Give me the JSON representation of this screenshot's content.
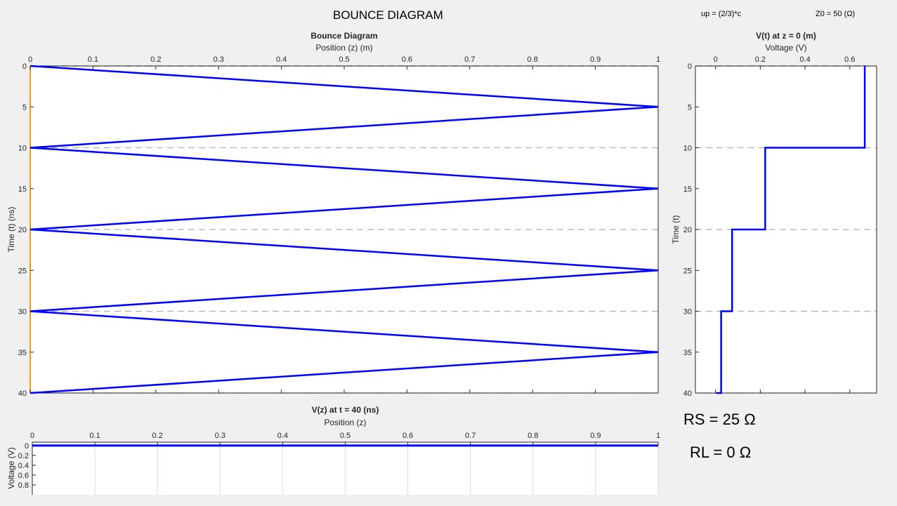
{
  "header": {
    "title": "BOUNCE DIAGRAM",
    "up": "up = (2/3)*c",
    "z0": "Z0 = 50 (Ω)"
  },
  "params": {
    "rs": "RS = 25 Ω",
    "rl": "RL = 0 Ω"
  },
  "colors": {
    "line": "#0000ff",
    "axis_left": "#d9a030",
    "grid": "#b0b0b0"
  },
  "chart_data": [
    {
      "type": "line",
      "title": "Bounce Diagram",
      "xlabel": "Position (z) (m)",
      "ylabel": "Time (t) (ns)",
      "xlim": [
        0,
        1
      ],
      "ylim": [
        0,
        40
      ],
      "y_reversed": true,
      "xticks": [
        "0",
        "0.1",
        "0.2",
        "0.3",
        "0.4",
        "0.5",
        "0.6",
        "0.7",
        "0.8",
        "0.9",
        "1"
      ],
      "yticks": [
        "0",
        "5",
        "10",
        "15",
        "20",
        "25",
        "30",
        "35",
        "40"
      ],
      "hlines": [
        0,
        10,
        20,
        30,
        40
      ],
      "series": [
        {
          "name": "bounce",
          "x": [
            0,
            1,
            0,
            1,
            0,
            1,
            0,
            1,
            0
          ],
          "y": [
            0,
            5,
            10,
            15,
            20,
            25,
            30,
            35,
            40
          ]
        }
      ]
    },
    {
      "type": "line",
      "title": "V(t) at z = 0 (m)",
      "xlabel": "Voltage (V)",
      "ylabel": "Time (t)",
      "xlim": [
        -0.09,
        0.72
      ],
      "ylim": [
        0,
        40
      ],
      "y_reversed": true,
      "xticks": [
        "0",
        "0.2",
        "0.4",
        "0.6"
      ],
      "xtickvals": [
        0,
        0.2,
        0.4,
        0.6
      ],
      "yticks": [
        "0",
        "5",
        "10",
        "15",
        "20",
        "25",
        "30",
        "35",
        "40"
      ],
      "hlines": [
        0,
        10,
        20,
        30,
        40
      ],
      "series": [
        {
          "name": "V(t)",
          "x": [
            0.667,
            0.667,
            0.222,
            0.222,
            0.074,
            0.074,
            0.025,
            0.025,
            0.002
          ],
          "y": [
            0,
            10,
            10,
            20,
            20,
            30,
            30,
            40,
            40
          ]
        }
      ]
    },
    {
      "type": "line",
      "title": "V(z) at t = 40 (ns)",
      "xlabel": "Position (z)",
      "ylabel": "Voltage (V)",
      "xlim": [
        0,
        1
      ],
      "ylim": [
        -0.07,
        1
      ],
      "y_reversed": true,
      "xticks": [
        "0",
        "0.1",
        "0.2",
        "0.3",
        "0.4",
        "0.5",
        "0.6",
        "0.7",
        "0.8",
        "0.9",
        "1"
      ],
      "yticks": [
        "0",
        "0.2",
        "0.4",
        "0.6",
        "0.8"
      ],
      "ytickvals": [
        0,
        0.2,
        0.4,
        0.6,
        0.8
      ],
      "series": [
        {
          "name": "V(z)",
          "x": [
            0,
            1
          ],
          "y": [
            0,
            0
          ]
        }
      ]
    }
  ]
}
